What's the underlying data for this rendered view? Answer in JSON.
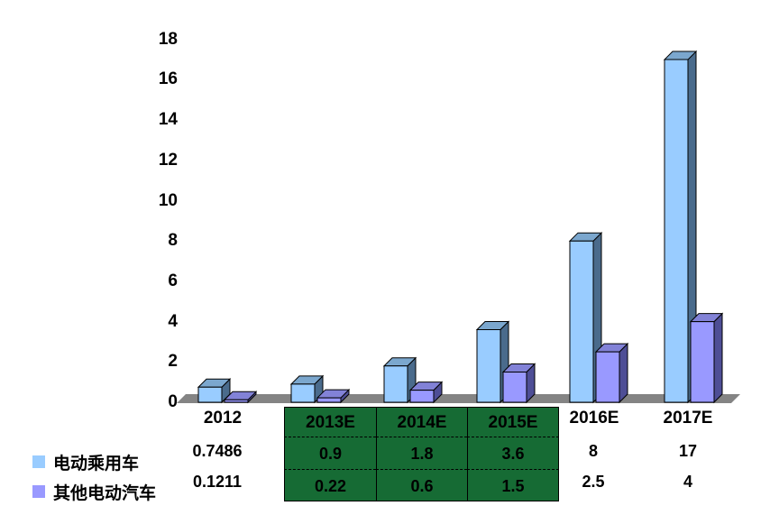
{
  "chart_data": {
    "type": "bar",
    "style": "3d-clustered-column",
    "categories": [
      "2012",
      "2013E",
      "2014E",
      "2015E",
      "2016E",
      "2017E"
    ],
    "series": [
      {
        "name": "电动乘用车",
        "color": "#99CCFF",
        "values": [
          0.7486,
          0.9,
          1.8,
          3.6,
          8,
          17
        ]
      },
      {
        "name": "其他电动汽车",
        "color": "#9999FF",
        "values": [
          0.1211,
          0.22,
          0.6,
          1.5,
          2.5,
          4
        ]
      }
    ],
    "title": "",
    "xlabel": "",
    "ylabel": "",
    "ylim": [
      0,
      18
    ],
    "ytick_step": 2,
    "grid": false,
    "legend_position": "bottom-left"
  },
  "axis": {
    "yticks": [
      "18",
      "16",
      "14",
      "12",
      "10",
      "8",
      "6",
      "4",
      "2",
      "0"
    ]
  },
  "table": {
    "header_row": [
      "2012",
      "2013E",
      "2014E",
      "2015E",
      "2016E",
      "2017E"
    ],
    "rows": [
      {
        "label": "电动乘用车",
        "values": [
          "0.7486",
          "0.9",
          "1.8",
          "3.6",
          "8",
          "17"
        ]
      },
      {
        "label": "其他电动汽车",
        "values": [
          "0.1211",
          "0.22",
          "0.6",
          "1.5",
          "2.5",
          "4"
        ]
      }
    ],
    "highlighted_columns": [
      "2013E",
      "2014E",
      "2015E"
    ]
  },
  "colors": {
    "series_faces": [
      {
        "front": "#99CCFF",
        "top": "#7BA7CE",
        "side": "#4A6B8C"
      },
      {
        "front": "#9999FF",
        "top": "#8282D7",
        "side": "#4E4E96"
      }
    ],
    "floor": "#848484",
    "outline": "#000000",
    "highlight_green": "#166B34",
    "text": "#000000"
  }
}
